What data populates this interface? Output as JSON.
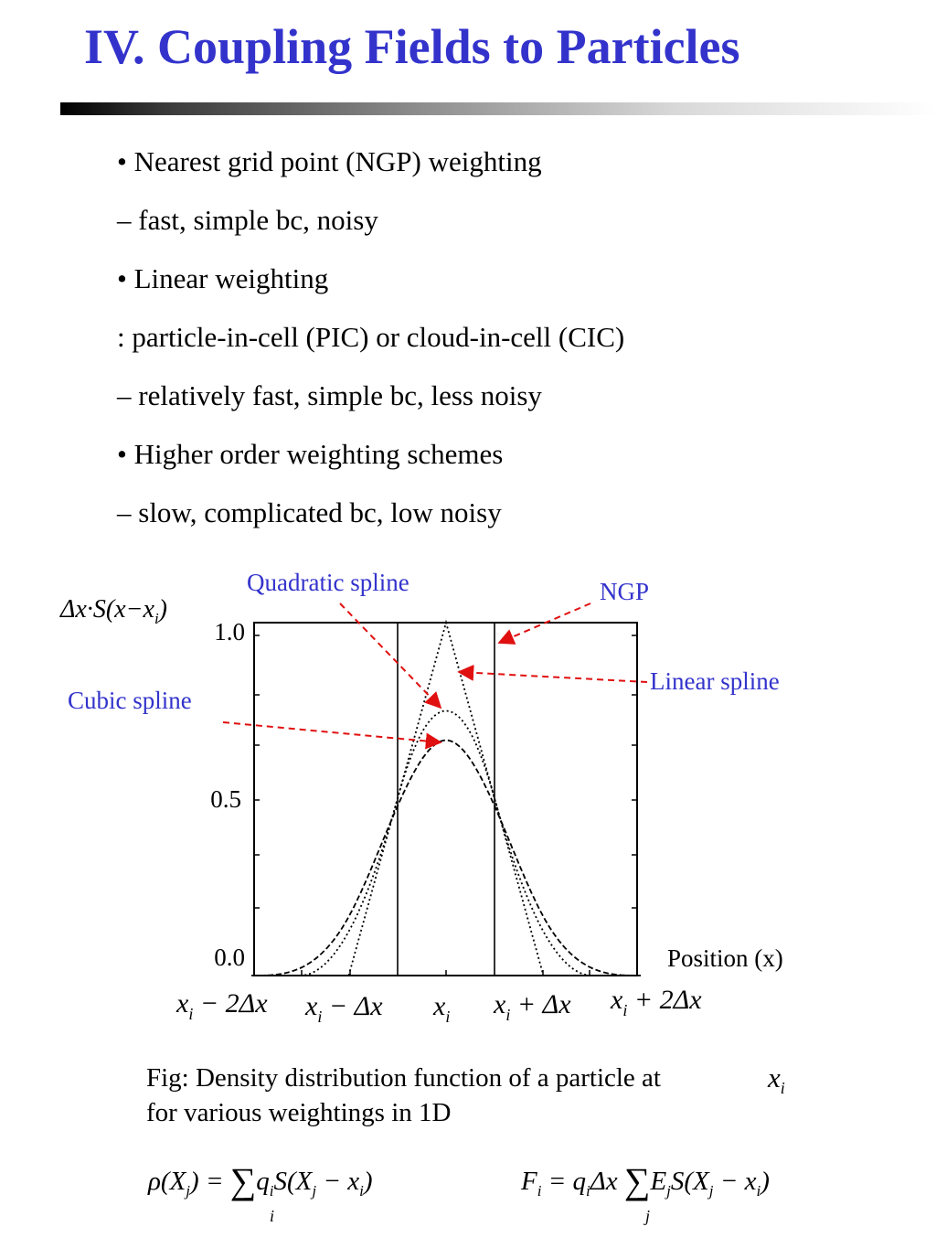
{
  "slide": {
    "title": "IV. Coupling Fields to Particles",
    "bullets": [
      "• Nearest grid point (NGP) weighting",
      "– fast, simple bc, noisy",
      "• Linear weighting",
      ": particle-in-cell (PIC) or cloud-in-cell (CIC)",
      "– relatively fast, simple bc, less noisy",
      "• Higher order weighting schemes",
      "– slow, complicated bc, low noisy"
    ],
    "caption_line1": "Fig: Density distribution function of a particle at",
    "caption_xi": "x",
    "caption_xi_sub": "i",
    "caption_line2": "for various weightings in 1D"
  },
  "figure": {
    "ylabel": "Δx·S(x−x",
    "ylabel_sub": "i",
    "ylabel_close": ")",
    "yticks": [
      "1.0",
      "0.5",
      "0.0"
    ],
    "xlabel": "Position (x)",
    "annotations": {
      "quadratic": "Quadratic spline",
      "ngp": "NGP",
      "linear": "Linear spline",
      "cubic": "Cubic spline"
    },
    "xticks": [
      {
        "main": "x",
        "sub": "i",
        "rest": " − 2Δx"
      },
      {
        "main": "x",
        "sub": "i",
        "rest": " − Δx"
      },
      {
        "main": "x",
        "sub": "i",
        "rest": ""
      },
      {
        "main": "x",
        "sub": "i",
        "rest": " + Δx"
      },
      {
        "main": "x",
        "sub": "i",
        "rest": " + 2Δx"
      }
    ],
    "colors": {
      "annotation": "#3333cc",
      "arrow": "#e01010",
      "axis": "#000000"
    }
  },
  "chart_data": {
    "type": "line",
    "xlabel": "Position (x)",
    "ylabel": "Δx·S(x−xi)",
    "x_units": "Δx offset from xi",
    "xlim": [
      -2,
      2
    ],
    "ylim": [
      0,
      1.0
    ],
    "series": [
      {
        "name": "NGP",
        "x": [
          -2,
          -0.5,
          -0.5,
          0.5,
          0.5,
          2
        ],
        "y": [
          0,
          0,
          1,
          1,
          0,
          0
        ]
      },
      {
        "name": "Linear spline",
        "x": [
          -2,
          -1,
          0,
          1,
          2
        ],
        "y": [
          0,
          0,
          1,
          0,
          0
        ]
      },
      {
        "name": "Quadratic spline",
        "formula": "quadratic_b_spline",
        "peak": 0.75
      },
      {
        "name": "Cubic spline",
        "formula": "cubic_b_spline",
        "peak": 0.667
      }
    ]
  },
  "formulas": {
    "rho_lhs": "ρ(X",
    "rho_lhs_sub": "j",
    "rho_eq": ") =",
    "rho_sum_index": "i",
    "rho_rhs_a": "q",
    "rho_rhs_a_sub": "i",
    "rho_rhs_b": "S(X",
    "rho_rhs_b_sub": "j",
    "rho_rhs_c": " − x",
    "rho_rhs_c_sub": "i",
    "rho_rhs_close": ")",
    "F_lhs": "F",
    "F_lhs_sub": "i",
    "F_eq": " = q",
    "F_q_sub": "i",
    "F_dx": "Δx",
    "F_sum_index": "j",
    "F_rhs_a": "E",
    "F_rhs_a_sub": "j",
    "F_rhs_b": "S(X",
    "F_rhs_b_sub": "j",
    "F_rhs_c": " − x",
    "F_rhs_c_sub": "i",
    "F_rhs_close": ")",
    "sum_symbol": "∑"
  }
}
